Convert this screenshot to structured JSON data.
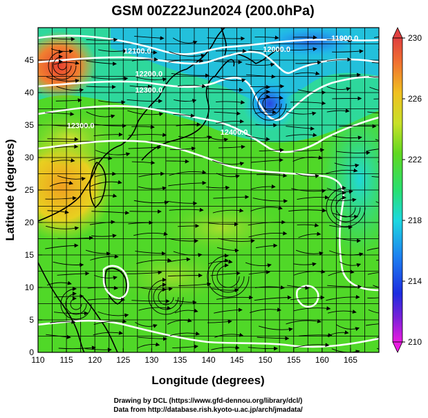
{
  "title": "GSM 00Z22Jun2024 (200.0hPa)",
  "x_axis": {
    "label": "Longitude (degrees)",
    "ticks": [
      "110",
      "115",
      "120",
      "125",
      "130",
      "135",
      "140",
      "145",
      "150",
      "155",
      "160",
      "165"
    ],
    "range": [
      110,
      170
    ]
  },
  "y_axis": {
    "label": "Latitude  (degrees)",
    "ticks": [
      "0",
      "5",
      "10",
      "15",
      "20",
      "25",
      "30",
      "35",
      "40",
      "45"
    ],
    "range": [
      0,
      50
    ]
  },
  "colorbar": {
    "ticks": [
      "210",
      "214",
      "218",
      "222",
      "226",
      "230"
    ],
    "colors": [
      "#e81ce0",
      "#7a20d8",
      "#1c3ce0",
      "#1ca0f0",
      "#1ce0d8",
      "#28e070",
      "#60d820",
      "#c8e028",
      "#f0c020",
      "#f07030",
      "#e04040"
    ]
  },
  "contour_labels": [
    {
      "text": "12100.0",
      "lon": 127.5,
      "lat": 46.0
    },
    {
      "text": "12000.0",
      "lon": 152.0,
      "lat": 46.3
    },
    {
      "text": "11900.0",
      "lon": 164.0,
      "lat": 48.0
    },
    {
      "text": "12200.0",
      "lon": 129.5,
      "lat": 42.5
    },
    {
      "text": "12300.0",
      "lon": 129.5,
      "lat": 40.0
    },
    {
      "text": "12300.0",
      "lon": 117.5,
      "lat": 34.5
    },
    {
      "text": "12400.0",
      "lon": 144.5,
      "lat": 33.5
    }
  ],
  "credits": {
    "line1": "Drawing by DCL (https://www.gfd-dennou.org/library/dcl/)",
    "line2": "Data from http://database.rish.kyoto-u.ac.jp/arch/jmadata/"
  }
}
